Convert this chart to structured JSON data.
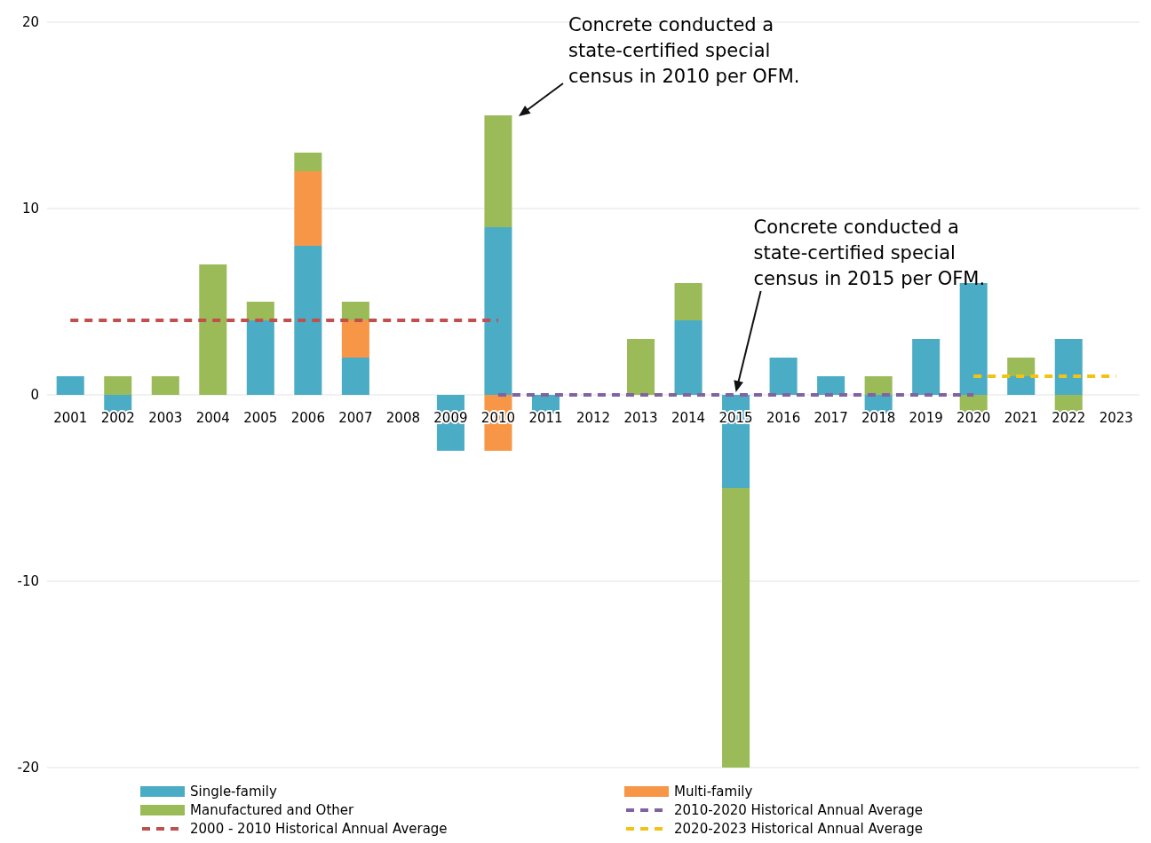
{
  "chart_data": {
    "type": "bar",
    "stacked": true,
    "categories": [
      "2001",
      "2002",
      "2003",
      "2004",
      "2005",
      "2006",
      "2007",
      "2008",
      "2009",
      "2010",
      "2011",
      "2012",
      "2013",
      "2014",
      "2015",
      "2016",
      "2017",
      "2018",
      "2019",
      "2020",
      "2021",
      "2022",
      "2023"
    ],
    "series": [
      {
        "name": "Single-family",
        "color": "#4bacc6",
        "values": [
          1,
          -1,
          null,
          null,
          4,
          8,
          2,
          null,
          -3,
          9,
          -1,
          null,
          null,
          4,
          -5,
          2,
          1,
          -1,
          3,
          6,
          1,
          3,
          null
        ]
      },
      {
        "name": "Multi-family",
        "color": "#f79646",
        "values": [
          null,
          null,
          null,
          null,
          null,
          4,
          2,
          null,
          null,
          -3,
          null,
          null,
          null,
          null,
          null,
          null,
          null,
          null,
          null,
          null,
          null,
          null,
          null
        ]
      },
      {
        "name": "Manufactured and Other",
        "color": "#9bbb59",
        "values": [
          null,
          1,
          1,
          7,
          1,
          1,
          1,
          null,
          null,
          6,
          null,
          null,
          3,
          2,
          -15,
          null,
          null,
          1,
          null,
          -1,
          1,
          -1,
          null
        ]
      },
      {
        "name": "2010-2020 Historical Annual Average",
        "type": "line",
        "line_style": "dashed",
        "color": "#8064a2",
        "values": [
          null,
          null,
          null,
          null,
          null,
          null,
          null,
          null,
          null,
          0,
          0,
          0,
          0,
          0,
          0,
          0,
          0,
          0,
          0,
          0,
          null,
          null,
          null
        ]
      },
      {
        "name": "2000 - 2010 Historical Annual Average",
        "type": "line",
        "line_style": "dashed",
        "color": "#c0504d",
        "values": [
          4,
          4,
          4,
          4,
          4,
          4,
          4,
          4,
          4,
          4,
          null,
          null,
          null,
          null,
          null,
          null,
          null,
          null,
          null,
          null,
          null,
          null,
          null
        ]
      },
      {
        "name": "2020-2023 Historical Annual Average",
        "type": "line",
        "line_style": "dashed",
        "color": "#f2c314",
        "values": [
          null,
          null,
          null,
          null,
          null,
          null,
          null,
          null,
          null,
          null,
          null,
          null,
          null,
          null,
          null,
          null,
          null,
          null,
          null,
          1,
          1,
          1,
          1
        ]
      }
    ],
    "ylim": [
      -20,
      20
    ],
    "yticks": [
      -20,
      -10,
      0,
      10,
      20
    ],
    "grid": "y",
    "legend": "bottom",
    "marker": "none",
    "annotations": [
      "Concrete conducted a state-certified special census in 2010 per OFM.",
      {
        "text": "Concrete conducted a state-certified special census in 2015 per OFM.",
        "x": "2015",
        "y": 0
      }
    ]
  }
}
